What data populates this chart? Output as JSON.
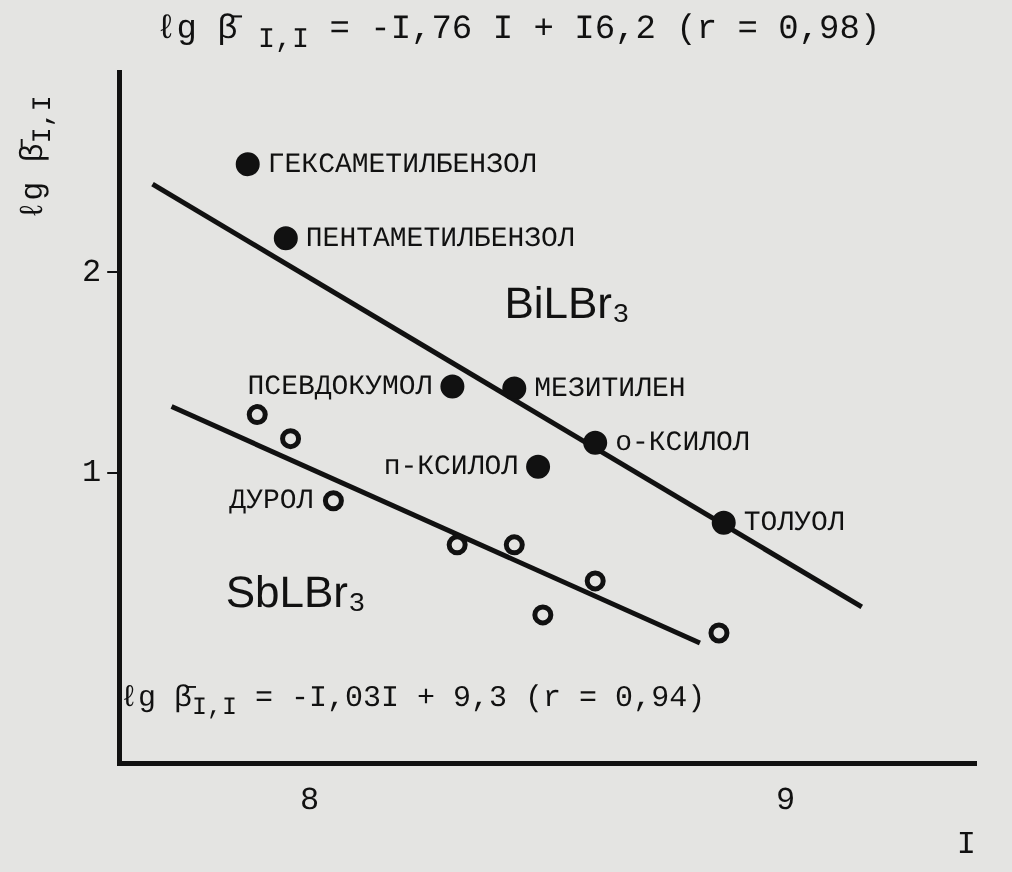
{
  "chart_data": {
    "type": "scatter",
    "title": "ℓg β̄ $_{I,I}$ = -I,76 I + I6,2 (r = 0,98)",
    "xlabel": "I",
    "ylabel": "ℓg β̄$_{I,I}$",
    "xlim": [
      7.6,
      9.4
    ],
    "xticks": [
      8,
      9
    ],
    "ylim": [
      -0.45,
      3
    ],
    "yticks": [
      1,
      2
    ],
    "grid": false,
    "legend": false,
    "series": [
      {
        "marker": "circle",
        "color": "#111111",
        "x": [
          7.87,
          7.95,
          8.3,
          8.43,
          8.6,
          8.48,
          8.87
        ],
        "values": [
          2.54,
          2.17,
          1.43,
          1.42,
          1.15,
          1.03,
          0.75
        ]
      },
      {
        "marker": "circle",
        "color": "#111111",
        "x": [
          7.89,
          7.96,
          8.05,
          8.31,
          8.43,
          8.6,
          8.49,
          8.86
        ],
        "values": [
          1.29,
          1.17,
          0.86,
          0.64,
          0.64,
          0.46,
          0.29,
          0.2
        ]
      },
      {
        "type": "line",
        "name": "BiLBr₃",
        "color": "#111111",
        "x": [
          7.67,
          9.16
        ],
        "values": [
          2.44,
          0.33
        ]
      },
      {
        "type": "line",
        "name": "SbLBr₃",
        "color": "#111111",
        "x": [
          7.71,
          8.82
        ],
        "values": [
          1.33,
          0.15
        ]
      }
    ],
    "annotations": [
      {
        "text": "ГЕКСАМЕТИЛБЕНЗОЛ",
        "x": 7.87,
        "y": 2.54
      },
      {
        "text": "ПЕНТАМЕТИЛБЕНЗОЛ",
        "x": 7.95,
        "y": 2.17
      },
      {
        "text": "ПСЕВДОКУМОЛ",
        "x": 8.3,
        "y": 1.43
      },
      {
        "text": "МЕЗИТИЛЕН",
        "x": 8.43,
        "y": 1.42
      },
      {
        "text": "о-КСИЛОЛ",
        "x": 8.6,
        "y": 1.15
      },
      {
        "text": "п-КСИЛОЛ",
        "x": 8.48,
        "y": 1.03
      },
      {
        "text": "ДУРОЛ",
        "x": 8.05,
        "y": 0.86
      },
      {
        "text": "ТОЛУОЛ",
        "x": 8.87,
        "y": 0.75
      },
      "ℓg β̄$_{I,I}$ = -I,03I + 9,3 (r = 0,94)"
    ]
  }
}
